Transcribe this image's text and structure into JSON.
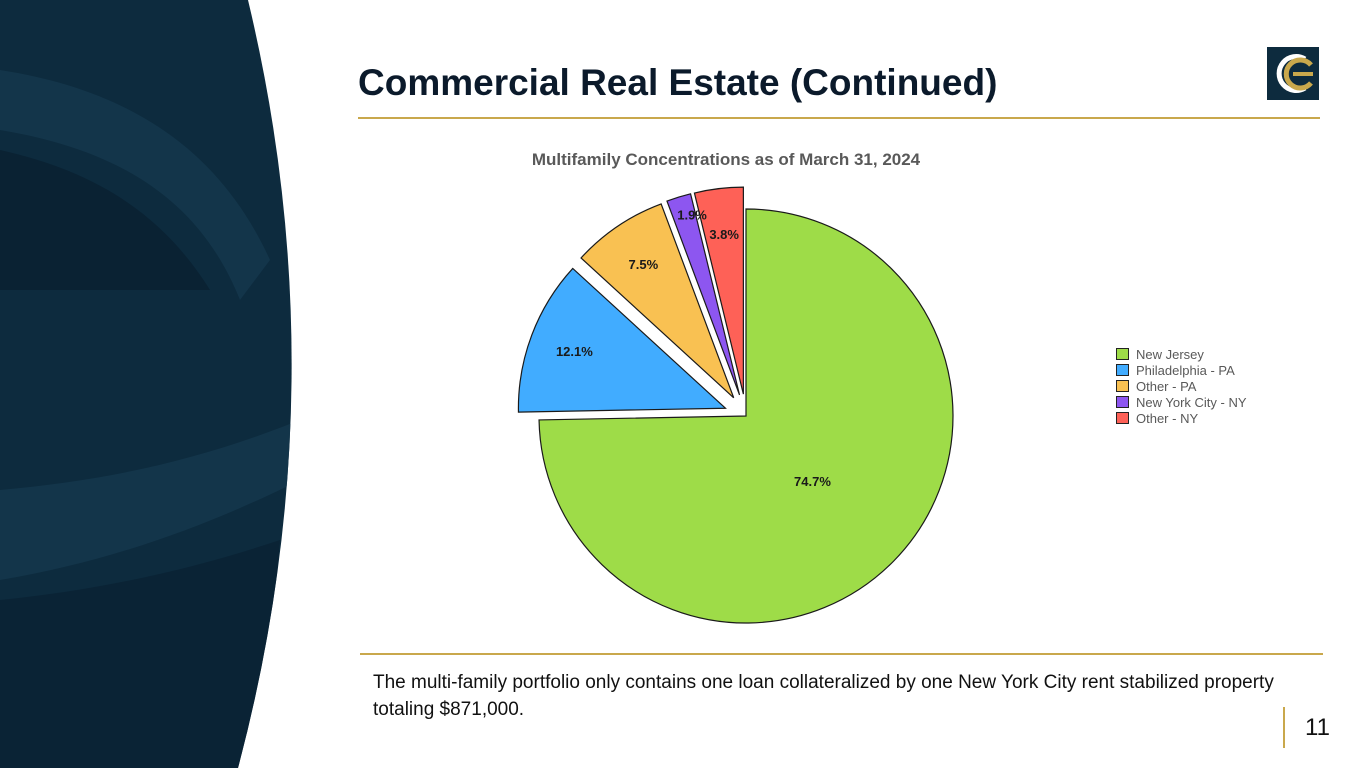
{
  "slide": {
    "title": "Commercial Real Estate (Continued)",
    "footnote": "The multi-family portfolio only contains one loan collateralized by one New York City rent stabilized property totaling $871,000.",
    "page_number": "11"
  },
  "colors": {
    "navy": "#0d2b3e",
    "gold": "#c9a84c",
    "title": "#0b1a2b"
  },
  "chart_data": {
    "type": "pie",
    "title": "Multifamily Concentrations as of March 31, 2024",
    "legend_position": "right",
    "categories": [
      "New Jersey",
      "Philadelphia - PA",
      "Other - PA",
      "New York City - NY",
      "Other - NY"
    ],
    "values": [
      74.7,
      12.1,
      7.5,
      1.9,
      3.8
    ],
    "labels": [
      "74.7%",
      "12.1%",
      "7.5%",
      "1.9%",
      "3.8%"
    ],
    "colors": [
      "#9edc48",
      "#41acff",
      "#f9c152",
      "#8d56f0",
      "#fe6157"
    ],
    "exploded": true
  }
}
